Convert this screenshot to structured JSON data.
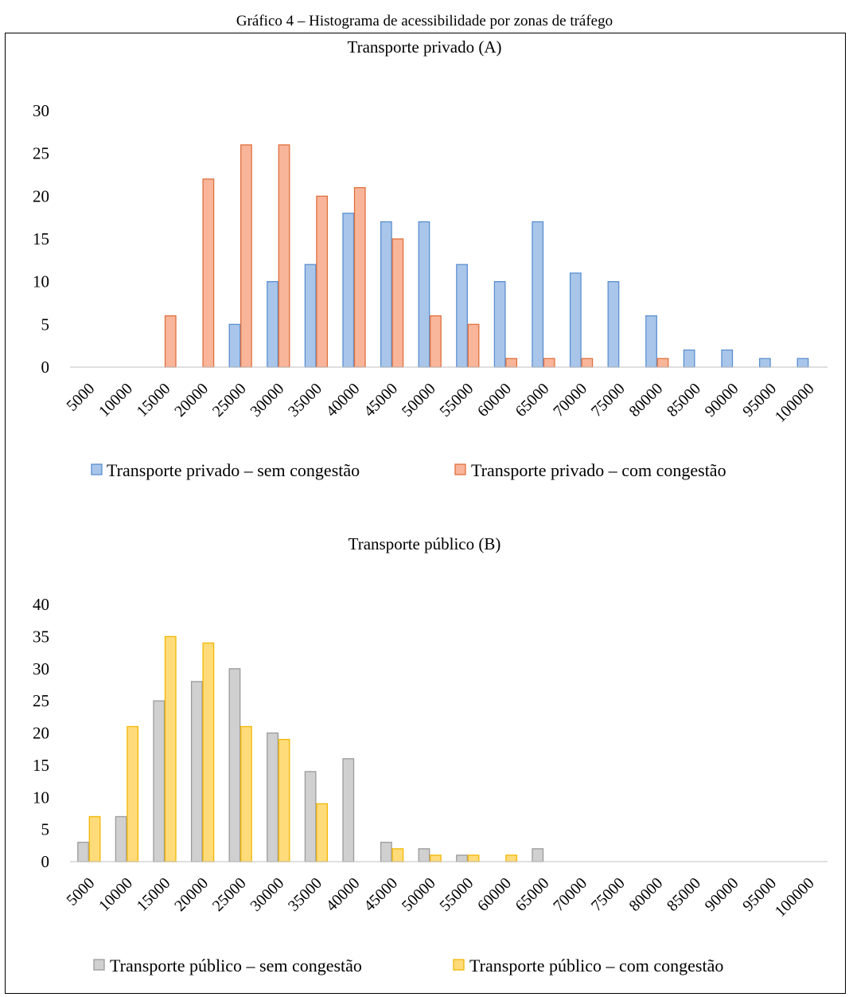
{
  "figure_caption": "Gráfico 4 – Histograma de acessibilidade por zonas de tráfego",
  "chart_data": [
    {
      "type": "bar",
      "title": "Transporte privado (A)",
      "xlabel": "",
      "ylabel": "",
      "categories": [
        "5000",
        "10000",
        "15000",
        "20000",
        "25000",
        "30000",
        "35000",
        "40000",
        "45000",
        "50000",
        "55000",
        "60000",
        "65000",
        "70000",
        "75000",
        "80000",
        "85000",
        "90000",
        "95000",
        "100000"
      ],
      "ylim": [
        0,
        30
      ],
      "yticks": [
        0,
        5,
        10,
        15,
        20,
        25,
        30
      ],
      "grid": false,
      "legend_position": "bottom",
      "series": [
        {
          "name": "Transporte privado  – sem congestão",
          "fill": "#a9c6ea",
          "stroke": "#5b8fd0",
          "values": [
            0,
            0,
            0,
            0,
            5,
            10,
            12,
            18,
            17,
            17,
            12,
            10,
            17,
            11,
            10,
            6,
            2,
            2,
            1,
            1
          ]
        },
        {
          "name": "Transporte privado – com congestão",
          "fill": "#f8b59a",
          "stroke": "#e0703e",
          "values": [
            0,
            0,
            6,
            22,
            26,
            26,
            20,
            21,
            15,
            6,
            5,
            1,
            1,
            1,
            0,
            1,
            0,
            0,
            0,
            0
          ]
        }
      ]
    },
    {
      "type": "bar",
      "title": "Transporte público (B)",
      "xlabel": "",
      "ylabel": "",
      "categories": [
        "5000",
        "10000",
        "15000",
        "20000",
        "25000",
        "30000",
        "35000",
        "40000",
        "45000",
        "50000",
        "55000",
        "60000",
        "65000",
        "70000",
        "75000",
        "80000",
        "85000",
        "90000",
        "95000",
        "100000"
      ],
      "ylim": [
        0,
        40
      ],
      "yticks": [
        0,
        5,
        10,
        15,
        20,
        25,
        30,
        35,
        40
      ],
      "grid": false,
      "legend_position": "bottom",
      "series": [
        {
          "name": "Transporte público – sem congestão",
          "fill": "#d0d0d0",
          "stroke": "#9a9a9a",
          "values": [
            3,
            7,
            25,
            28,
            30,
            20,
            14,
            16,
            3,
            2,
            1,
            0,
            2,
            0,
            0,
            0,
            0,
            0,
            0,
            0
          ]
        },
        {
          "name": "Transporte público – com congestão",
          "fill": "#ffdb7a",
          "stroke": "#f2b705",
          "values": [
            7,
            21,
            35,
            34,
            21,
            19,
            9,
            0,
            2,
            1,
            1,
            1,
            0,
            0,
            0,
            0,
            0,
            0,
            0,
            0
          ]
        }
      ]
    }
  ]
}
